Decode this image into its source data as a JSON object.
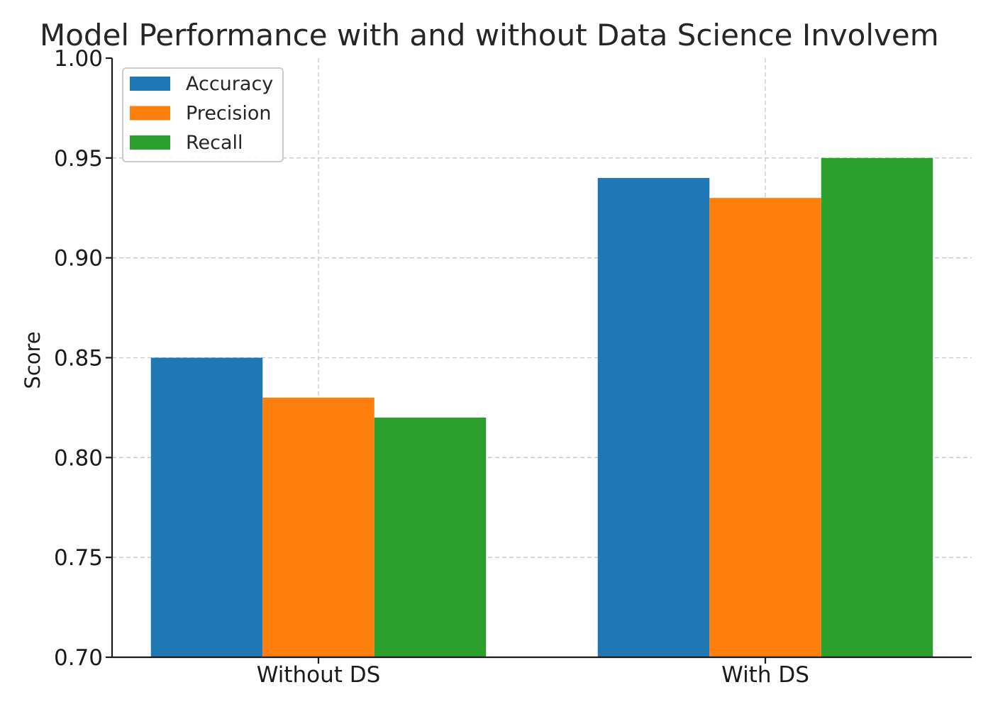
{
  "chart_data": {
    "type": "bar",
    "title": "Model Performance with and without Data Science Involvem",
    "xlabel": "",
    "ylabel": "Score",
    "categories": [
      "Without DS",
      "With DS"
    ],
    "series": [
      {
        "name": "Accuracy",
        "values": [
          0.85,
          0.94
        ],
        "color": "#1f77b4"
      },
      {
        "name": "Precision",
        "values": [
          0.83,
          0.93
        ],
        "color": "#ff7f0e"
      },
      {
        "name": "Recall",
        "values": [
          0.82,
          0.95
        ],
        "color": "#2ca02c"
      }
    ],
    "ylim": [
      0.7,
      1.0
    ],
    "yticks": [
      "0.70",
      "0.75",
      "0.80",
      "0.85",
      "0.90",
      "0.95",
      "1.00"
    ],
    "grid": true,
    "legend_position": "top-left"
  }
}
